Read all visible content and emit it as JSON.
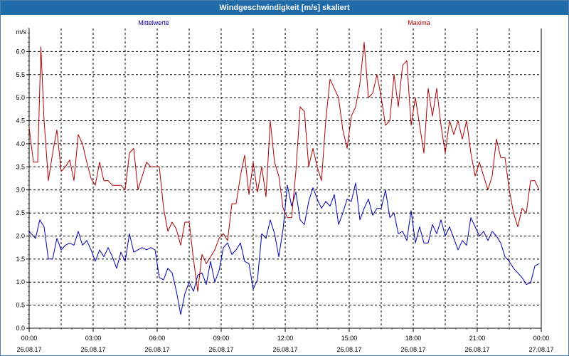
{
  "window": {
    "title": "Windgeschwindigkeit [m/s] skaliert"
  },
  "colors": {
    "mean": "#0000b4",
    "max": "#b00000",
    "grid": "#000000",
    "axis": "#000000"
  },
  "chart_data": {
    "type": "line",
    "title": "Windgeschwindigkeit [m/s] skaliert",
    "ylabel": "m/s",
    "ylim": [
      0,
      6.5
    ],
    "yticks": [
      "0.0",
      "0.5",
      "1.0",
      "1.5",
      "2.0",
      "2.5",
      "3.0",
      "3.5",
      "4.0",
      "4.5",
      "5.0",
      "5.5",
      "6.0"
    ],
    "xlim": [
      0,
      24
    ],
    "xticks": [
      {
        "time": "00:00",
        "date": "26.08.17"
      },
      {
        "time": "03:00",
        "date": "26.08.17"
      },
      {
        "time": "06:00",
        "date": "26.08.17"
      },
      {
        "time": "09:00",
        "date": "26.08.17"
      },
      {
        "time": "12:00",
        "date": "26.08.17"
      },
      {
        "time": "15:00",
        "date": "26.08.17"
      },
      {
        "time": "18:00",
        "date": "26.08.17"
      },
      {
        "time": "21:00",
        "date": "26.08.17"
      },
      {
        "time": "00:00",
        "date": "27.08.17"
      }
    ],
    "grid": true,
    "legend_position": "top",
    "series": [
      {
        "name": "Mittelwerte",
        "color": "#0000b4",
        "points": [
          [
            0.0,
            2.1
          ],
          [
            0.3,
            1.95
          ],
          [
            0.5,
            2.35
          ],
          [
            0.7,
            2.2
          ],
          [
            0.9,
            1.5
          ],
          [
            1.1,
            1.5
          ],
          [
            1.3,
            1.95
          ],
          [
            1.5,
            1.7
          ],
          [
            1.7,
            1.8
          ],
          [
            1.9,
            1.85
          ],
          [
            2.1,
            1.8
          ],
          [
            2.3,
            2.1
          ],
          [
            2.5,
            1.8
          ],
          [
            2.7,
            1.9
          ],
          [
            2.9,
            1.7
          ],
          [
            3.1,
            1.45
          ],
          [
            3.3,
            1.7
          ],
          [
            3.5,
            1.55
          ],
          [
            3.7,
            1.75
          ],
          [
            3.9,
            1.55
          ],
          [
            4.1,
            1.3
          ],
          [
            4.3,
            1.65
          ],
          [
            4.5,
            1.45
          ],
          [
            4.7,
            2.05
          ],
          [
            4.9,
            1.65
          ],
          [
            5.1,
            1.7
          ],
          [
            5.3,
            1.75
          ],
          [
            5.5,
            1.7
          ],
          [
            5.7,
            1.75
          ],
          [
            5.9,
            1.7
          ],
          [
            6.1,
            1.1
          ],
          [
            6.3,
            1.05
          ],
          [
            6.5,
            1.3
          ],
          [
            6.7,
            1.2
          ],
          [
            6.9,
            0.8
          ],
          [
            7.1,
            0.3
          ],
          [
            7.3,
            0.75
          ],
          [
            7.5,
            1.0
          ],
          [
            7.7,
            0.8
          ],
          [
            7.9,
            1.15
          ],
          [
            8.1,
            1.2
          ],
          [
            8.3,
            0.95
          ],
          [
            8.5,
            1.45
          ],
          [
            8.7,
            1.0
          ],
          [
            8.9,
            1.25
          ],
          [
            9.1,
            1.75
          ],
          [
            9.3,
            1.85
          ],
          [
            9.5,
            1.6
          ],
          [
            9.7,
            1.7
          ],
          [
            9.9,
            1.85
          ],
          [
            10.1,
            1.45
          ],
          [
            10.3,
            1.4
          ],
          [
            10.5,
            0.85
          ],
          [
            10.7,
            1.05
          ],
          [
            10.9,
            2.05
          ],
          [
            11.1,
            1.95
          ],
          [
            11.3,
            2.35
          ],
          [
            11.5,
            2.05
          ],
          [
            11.7,
            1.55
          ],
          [
            11.9,
            2.15
          ],
          [
            12.1,
            3.1
          ],
          [
            12.3,
            2.65
          ],
          [
            12.5,
            2.95
          ],
          [
            12.7,
            2.35
          ],
          [
            12.9,
            2.25
          ],
          [
            13.1,
            2.75
          ],
          [
            13.3,
            3.05
          ],
          [
            13.5,
            2.8
          ],
          [
            13.7,
            2.6
          ],
          [
            13.9,
            2.75
          ],
          [
            14.1,
            2.65
          ],
          [
            14.3,
            2.9
          ],
          [
            14.5,
            2.25
          ],
          [
            14.7,
            2.5
          ],
          [
            14.9,
            2.8
          ],
          [
            15.1,
            2.75
          ],
          [
            15.3,
            3.15
          ],
          [
            15.5,
            2.35
          ],
          [
            15.7,
            2.6
          ],
          [
            15.9,
            2.8
          ],
          [
            16.1,
            2.45
          ],
          [
            16.3,
            2.6
          ],
          [
            16.5,
            2.6
          ],
          [
            16.7,
            3.0
          ],
          [
            16.9,
            2.4
          ],
          [
            17.1,
            2.5
          ],
          [
            17.3,
            2.05
          ],
          [
            17.5,
            2.1
          ],
          [
            17.7,
            1.9
          ],
          [
            17.9,
            2.55
          ],
          [
            18.1,
            1.85
          ],
          [
            18.3,
            2.2
          ],
          [
            18.5,
            1.85
          ],
          [
            18.7,
            1.85
          ],
          [
            18.9,
            2.25
          ],
          [
            19.1,
            2.05
          ],
          [
            19.3,
            2.35
          ],
          [
            19.5,
            2.0
          ],
          [
            19.7,
            2.2
          ],
          [
            19.9,
            1.95
          ],
          [
            20.1,
            1.7
          ],
          [
            20.3,
            1.9
          ],
          [
            20.5,
            1.8
          ],
          [
            20.7,
            2.4
          ],
          [
            20.9,
            2.2
          ],
          [
            21.1,
            2.0
          ],
          [
            21.3,
            2.1
          ],
          [
            21.5,
            1.9
          ],
          [
            21.7,
            2.1
          ],
          [
            21.9,
            2.0
          ],
          [
            22.1,
            1.85
          ],
          [
            22.3,
            1.55
          ],
          [
            22.5,
            1.45
          ],
          [
            22.7,
            1.3
          ],
          [
            22.9,
            1.2
          ],
          [
            23.1,
            1.1
          ],
          [
            23.3,
            0.95
          ],
          [
            23.5,
            0.98
          ],
          [
            23.7,
            1.35
          ],
          [
            23.9,
            1.4
          ]
        ]
      },
      {
        "name": "Maxima",
        "color": "#b00000",
        "points": [
          [
            0.0,
            4.35
          ],
          [
            0.2,
            3.6
          ],
          [
            0.4,
            3.6
          ],
          [
            0.55,
            6.1
          ],
          [
            0.7,
            4.5
          ],
          [
            0.9,
            3.2
          ],
          [
            1.1,
            3.8
          ],
          [
            1.3,
            4.3
          ],
          [
            1.5,
            3.4
          ],
          [
            1.7,
            3.5
          ],
          [
            1.9,
            3.65
          ],
          [
            2.1,
            3.2
          ],
          [
            2.3,
            4.2
          ],
          [
            2.5,
            4.0
          ],
          [
            2.7,
            3.6
          ],
          [
            2.9,
            3.25
          ],
          [
            3.1,
            3.1
          ],
          [
            3.3,
            3.6
          ],
          [
            3.5,
            3.2
          ],
          [
            3.7,
            3.2
          ],
          [
            3.9,
            3.1
          ],
          [
            4.1,
            3.1
          ],
          [
            4.3,
            3.1
          ],
          [
            4.5,
            3.0
          ],
          [
            4.7,
            3.8
          ],
          [
            4.9,
            3.9
          ],
          [
            5.1,
            3.0
          ],
          [
            5.3,
            3.3
          ],
          [
            5.5,
            3.6
          ],
          [
            5.7,
            3.5
          ],
          [
            5.9,
            3.5
          ],
          [
            6.1,
            3.5
          ],
          [
            6.3,
            2.6
          ],
          [
            6.5,
            2.1
          ],
          [
            6.7,
            2.3
          ],
          [
            6.9,
            2.15
          ],
          [
            7.1,
            1.8
          ],
          [
            7.3,
            2.3
          ],
          [
            7.5,
            2.3
          ],
          [
            7.7,
            1.5
          ],
          [
            7.9,
            0.8
          ],
          [
            8.1,
            1.6
          ],
          [
            8.3,
            1.4
          ],
          [
            8.5,
            1.55
          ],
          [
            8.7,
            1.7
          ],
          [
            8.9,
            1.95
          ],
          [
            9.1,
            2.05
          ],
          [
            9.3,
            1.9
          ],
          [
            9.5,
            2.7
          ],
          [
            9.7,
            2.7
          ],
          [
            9.9,
            3.3
          ],
          [
            10.1,
            3.75
          ],
          [
            10.3,
            2.9
          ],
          [
            10.5,
            3.6
          ],
          [
            10.7,
            2.95
          ],
          [
            10.9,
            3.5
          ],
          [
            11.1,
            2.85
          ],
          [
            11.3,
            4.5
          ],
          [
            11.5,
            3.6
          ],
          [
            11.7,
            3.3
          ],
          [
            11.9,
            2.6
          ],
          [
            12.1,
            2.4
          ],
          [
            12.3,
            2.4
          ],
          [
            12.5,
            3.4
          ],
          [
            12.7,
            4.8
          ],
          [
            12.9,
            4.7
          ],
          [
            13.1,
            3.5
          ],
          [
            13.3,
            3.9
          ],
          [
            13.5,
            3.5
          ],
          [
            13.7,
            3.2
          ],
          [
            13.9,
            4.5
          ],
          [
            14.1,
            5.4
          ],
          [
            14.3,
            5.2
          ],
          [
            14.5,
            5.0
          ],
          [
            14.7,
            4.3
          ],
          [
            14.9,
            3.9
          ],
          [
            15.1,
            4.6
          ],
          [
            15.3,
            4.8
          ],
          [
            15.5,
            5.3
          ],
          [
            15.7,
            6.2
          ],
          [
            15.9,
            5.0
          ],
          [
            16.1,
            5.1
          ],
          [
            16.3,
            5.5
          ],
          [
            16.5,
            5.0
          ],
          [
            16.7,
            4.4
          ],
          [
            16.9,
            4.5
          ],
          [
            17.1,
            5.5
          ],
          [
            17.3,
            4.8
          ],
          [
            17.5,
            5.7
          ],
          [
            17.7,
            5.8
          ],
          [
            17.9,
            4.4
          ],
          [
            18.1,
            5.0
          ],
          [
            18.3,
            4.4
          ],
          [
            18.5,
            3.8
          ],
          [
            18.7,
            5.2
          ],
          [
            18.9,
            4.6
          ],
          [
            19.1,
            5.2
          ],
          [
            19.3,
            4.4
          ],
          [
            19.5,
            3.8
          ],
          [
            19.7,
            4.5
          ],
          [
            19.9,
            4.2
          ],
          [
            20.1,
            4.5
          ],
          [
            20.3,
            4.1
          ],
          [
            20.5,
            4.5
          ],
          [
            20.7,
            3.8
          ],
          [
            20.9,
            3.3
          ],
          [
            21.1,
            3.6
          ],
          [
            21.3,
            3.3
          ],
          [
            21.5,
            3.0
          ],
          [
            21.7,
            3.3
          ],
          [
            21.9,
            4.1
          ],
          [
            22.1,
            3.7
          ],
          [
            22.3,
            3.7
          ],
          [
            22.5,
            3.0
          ],
          [
            22.7,
            2.5
          ],
          [
            22.9,
            2.2
          ],
          [
            23.1,
            2.6
          ],
          [
            23.3,
            2.5
          ],
          [
            23.5,
            3.2
          ],
          [
            23.7,
            3.2
          ],
          [
            23.9,
            3.0
          ]
        ]
      }
    ]
  }
}
